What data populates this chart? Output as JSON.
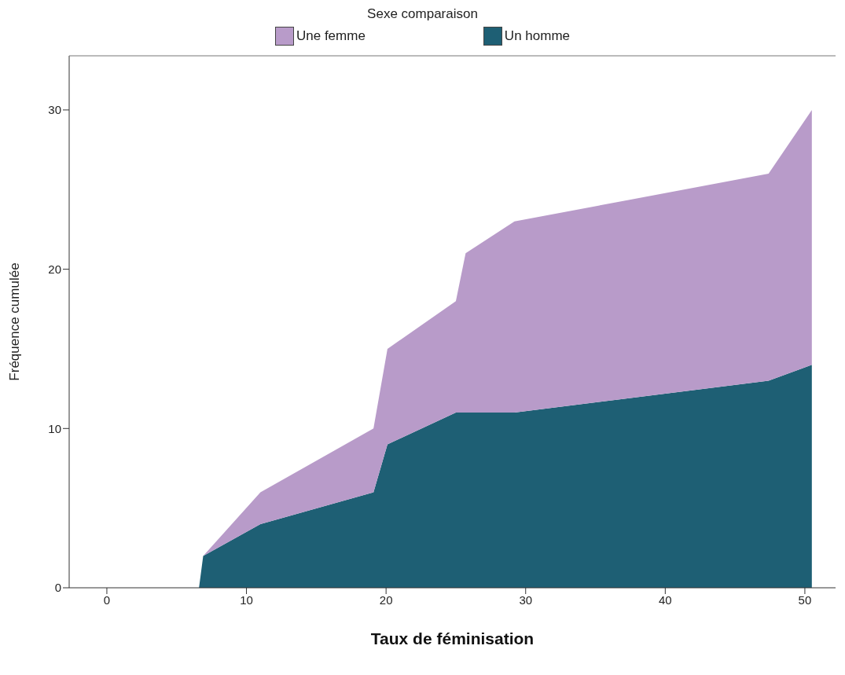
{
  "chart_data": {
    "type": "area",
    "xlabel": "Taux de féminisation",
    "ylabel": "Fréquence cumulée",
    "legend_title": "Sexe comparaison",
    "legend": "top",
    "stacked": true,
    "x": [
      6.6,
      6.9,
      11,
      19.1,
      20.1,
      25,
      25.7,
      29.2,
      47.4,
      50.5
    ],
    "series": [
      {
        "name": "Un homme",
        "color": "#1e5f74",
        "values": [
          0,
          2,
          4,
          6,
          9,
          11,
          11,
          11,
          13,
          14
        ]
      },
      {
        "name": "Une femme",
        "color": "#b89bc9",
        "values": [
          0,
          0,
          2,
          4,
          6,
          7,
          10,
          12,
          13,
          16
        ]
      }
    ],
    "xlim": [
      -2.7,
      52.2
    ],
    "xticks": [
      0,
      10,
      20,
      30,
      40,
      50
    ],
    "ylim": [
      0,
      33.4
    ],
    "yticks": [
      0,
      10,
      20,
      30
    ]
  }
}
